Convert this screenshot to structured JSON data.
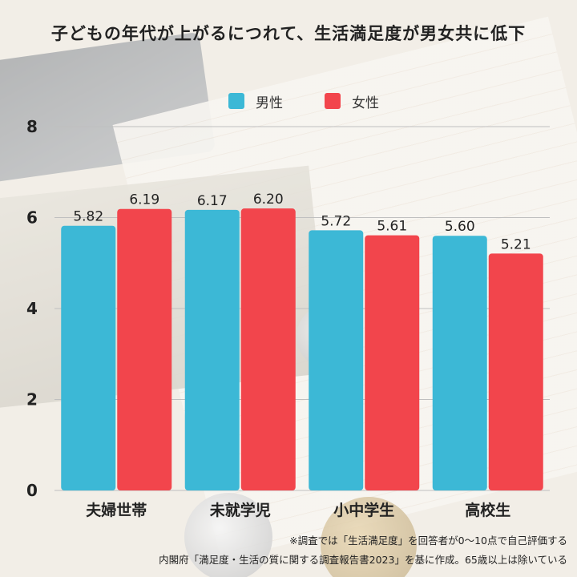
{
  "title": "子どもの年代が上がるにつれて、生活満足度が男女共に低下",
  "legend": {
    "male": "男性",
    "female": "女性"
  },
  "colors": {
    "male": "#3cb8d6",
    "female": "#f2454c"
  },
  "chart_data": {
    "type": "bar",
    "categories": [
      "夫婦世帯",
      "未就学児",
      "小中学生",
      "高校生"
    ],
    "series": [
      {
        "name": "男性",
        "values": [
          5.82,
          6.17,
          5.72,
          5.6
        ],
        "labels": [
          "5.82",
          "6.17",
          "5.72",
          "5.60"
        ]
      },
      {
        "name": "女性",
        "values": [
          6.19,
          6.2,
          5.61,
          5.21
        ],
        "labels": [
          "6.19",
          "6.20",
          "5.61",
          "5.21"
        ]
      }
    ],
    "ylim": [
      0,
      8
    ],
    "yticks": [
      "0",
      "2",
      "4",
      "6",
      "8"
    ],
    "grid": true
  },
  "notes": {
    "line1": "※調査では「生活満足度」を回答者が0～10点で自己評価する",
    "line2": "内閣府「満足度・生活の質に関する調査報告書2023」を基に作成。65歳以上は除いている"
  }
}
